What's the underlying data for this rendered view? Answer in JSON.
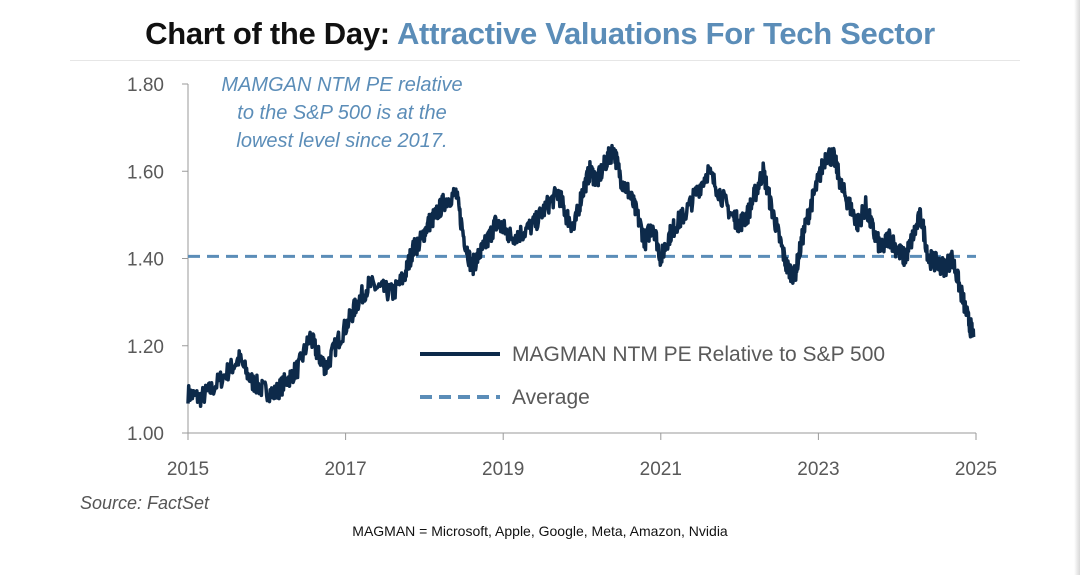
{
  "header": {
    "title_prefix": "Chart of the Day:",
    "title_main": "Attractive Valuations For Tech Sector"
  },
  "source": "Source: FactSet",
  "footnote": "MAGMAN = Microsoft, Apple, Google, Meta, Amazon, Nvidia",
  "colors": {
    "title_accent": "#5b8db8",
    "series_line": "#0d2a4a",
    "average_line": "#5b8db8",
    "annotation": "#5b8db8",
    "axis_text": "#595959"
  },
  "chart_data": {
    "type": "line",
    "title": "Attractive Valuations For Tech Sector",
    "xlabel": "",
    "ylabel": "",
    "xlim": [
      2015,
      2025
    ],
    "ylim": [
      1.0,
      1.8
    ],
    "x_ticks": [
      "2015",
      "2017",
      "2019",
      "2021",
      "2023",
      "2025"
    ],
    "y_ticks": [
      "1.00",
      "1.20",
      "1.40",
      "1.60",
      "1.80"
    ],
    "grid": false,
    "legend_position": "lower-right",
    "annotation": [
      "MAMGAN NTM PE relative",
      "to the S&P 500 is at the",
      "lowest level since 2017."
    ],
    "series": [
      {
        "name": "MAGMAN NTM PE Relative to S&P 500",
        "style": "solid",
        "x": [
          2015.0,
          2015.15,
          2015.3,
          2015.5,
          2015.65,
          2015.8,
          2015.95,
          2016.1,
          2016.25,
          2016.4,
          2016.55,
          2016.65,
          2016.75,
          2016.9,
          2017.05,
          2017.15,
          2017.3,
          2017.45,
          2017.6,
          2017.75,
          2017.85,
          2017.95,
          2018.05,
          2018.15,
          2018.25,
          2018.4,
          2018.5,
          2018.6,
          2018.7,
          2018.8,
          2018.9,
          2019.0,
          2019.1,
          2019.25,
          2019.4,
          2019.55,
          2019.7,
          2019.8,
          2019.9,
          2020.0,
          2020.1,
          2020.2,
          2020.3,
          2020.4,
          2020.5,
          2020.6,
          2020.7,
          2020.8,
          2020.9,
          2021.0,
          2021.1,
          2021.2,
          2021.3,
          2021.45,
          2021.6,
          2021.75,
          2021.9,
          2022.0,
          2022.1,
          2022.2,
          2022.3,
          2022.4,
          2022.5,
          2022.6,
          2022.7,
          2022.8,
          2022.9,
          2023.0,
          2023.1,
          2023.2,
          2023.3,
          2023.4,
          2023.5,
          2023.6,
          2023.7,
          2023.8,
          2023.9,
          2024.0,
          2024.1,
          2024.2,
          2024.3,
          2024.4,
          2024.5,
          2024.6,
          2024.7,
          2024.8,
          2024.9,
          2024.97
        ],
        "y": [
          1.09,
          1.08,
          1.1,
          1.14,
          1.17,
          1.12,
          1.1,
          1.09,
          1.12,
          1.15,
          1.22,
          1.18,
          1.15,
          1.21,
          1.26,
          1.3,
          1.34,
          1.33,
          1.32,
          1.36,
          1.42,
          1.44,
          1.48,
          1.5,
          1.53,
          1.55,
          1.45,
          1.38,
          1.41,
          1.44,
          1.48,
          1.47,
          1.45,
          1.46,
          1.48,
          1.52,
          1.55,
          1.5,
          1.47,
          1.55,
          1.6,
          1.58,
          1.62,
          1.65,
          1.58,
          1.55,
          1.5,
          1.44,
          1.48,
          1.4,
          1.45,
          1.48,
          1.5,
          1.55,
          1.6,
          1.55,
          1.5,
          1.48,
          1.5,
          1.55,
          1.6,
          1.52,
          1.45,
          1.38,
          1.36,
          1.45,
          1.52,
          1.58,
          1.64,
          1.63,
          1.56,
          1.52,
          1.48,
          1.52,
          1.46,
          1.42,
          1.45,
          1.42,
          1.4,
          1.45,
          1.5,
          1.4,
          1.39,
          1.38,
          1.4,
          1.33,
          1.26,
          1.22
        ]
      },
      {
        "name": "Average",
        "style": "dashed",
        "x": [
          2015,
          2025
        ],
        "y": [
          1.405,
          1.405
        ]
      }
    ]
  }
}
